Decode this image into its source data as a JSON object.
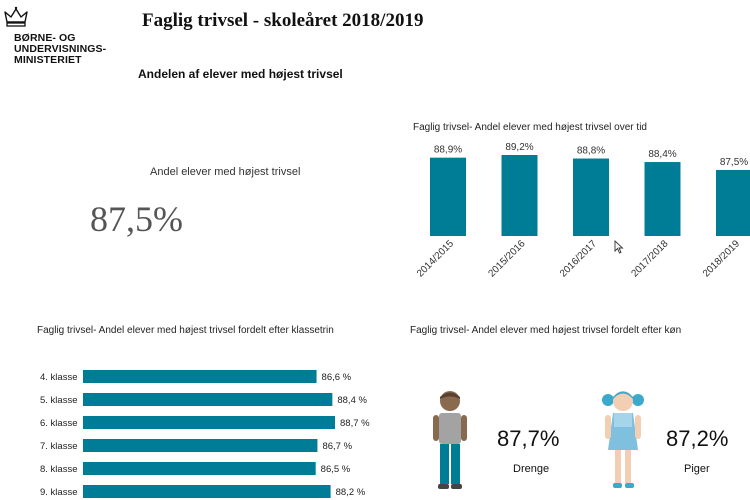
{
  "logo": {
    "name": "BØRNE- OG\nUNDERVISNINGS-\nMINISTERIET",
    "icon": "crown-icon"
  },
  "header": {
    "title": "Faglig trivsel - skoleåret 2018/2019",
    "subtitle": "Andelen af elever med højest trivsel"
  },
  "kpi": {
    "label": "Andel elever med højest trivsel",
    "value": "87,5%"
  },
  "panels": {
    "time_title": "Faglig trivsel- Andel elever med højest trivsel over tid",
    "grade_title": "Faglig trivsel- Andel elever med højest trivsel fordelt efter klassetrin",
    "gender_title": "Faglig trivsel- Andel elever med højest trivsel fordelt efter køn"
  },
  "colors": {
    "bar": "#007d96",
    "boy_skin": "#8a6a4e",
    "boy_shirt": "#a3a3a3",
    "boy_pants": "#007d96",
    "girl_hair": "#3aa9cc",
    "girl_dress": "#7fc0de"
  },
  "chart_data": [
    {
      "type": "bar",
      "orientation": "vertical",
      "categories": [
        "2014/2015",
        "2015/2016",
        "2016/2017",
        "2017/2018",
        "2018/2019"
      ],
      "values": [
        88.9,
        89.2,
        88.8,
        88.4,
        87.5
      ],
      "data_labels": [
        "88,9%",
        "89,2%",
        "88,8%",
        "88,4%",
        "87,5%"
      ],
      "title": "Faglig trivsel- Andel elever med højest trivsel over tid",
      "xlabel": "",
      "ylabel": "",
      "grid": false
    },
    {
      "type": "bar",
      "orientation": "horizontal",
      "categories": [
        "4. klasse",
        "5. klasse",
        "6. klasse",
        "7. klasse",
        "8. klasse",
        "9. klasse"
      ],
      "values": [
        86.6,
        88.4,
        88.7,
        86.7,
        86.5,
        88.2
      ],
      "data_labels": [
        "86,6 %",
        "88,4 %",
        "88,7 %",
        "86,7 %",
        "86,5 %",
        "88,2 %"
      ],
      "title": "Faglig trivsel- Andel elever med højest trivsel fordelt efter klassetrin",
      "xlabel": "",
      "ylabel": "",
      "grid": false
    }
  ],
  "gender": [
    {
      "label": "Drenge",
      "value": "87,7%",
      "icon": "boy-icon"
    },
    {
      "label": "Piger",
      "value": "87,2%",
      "icon": "girl-icon"
    }
  ]
}
